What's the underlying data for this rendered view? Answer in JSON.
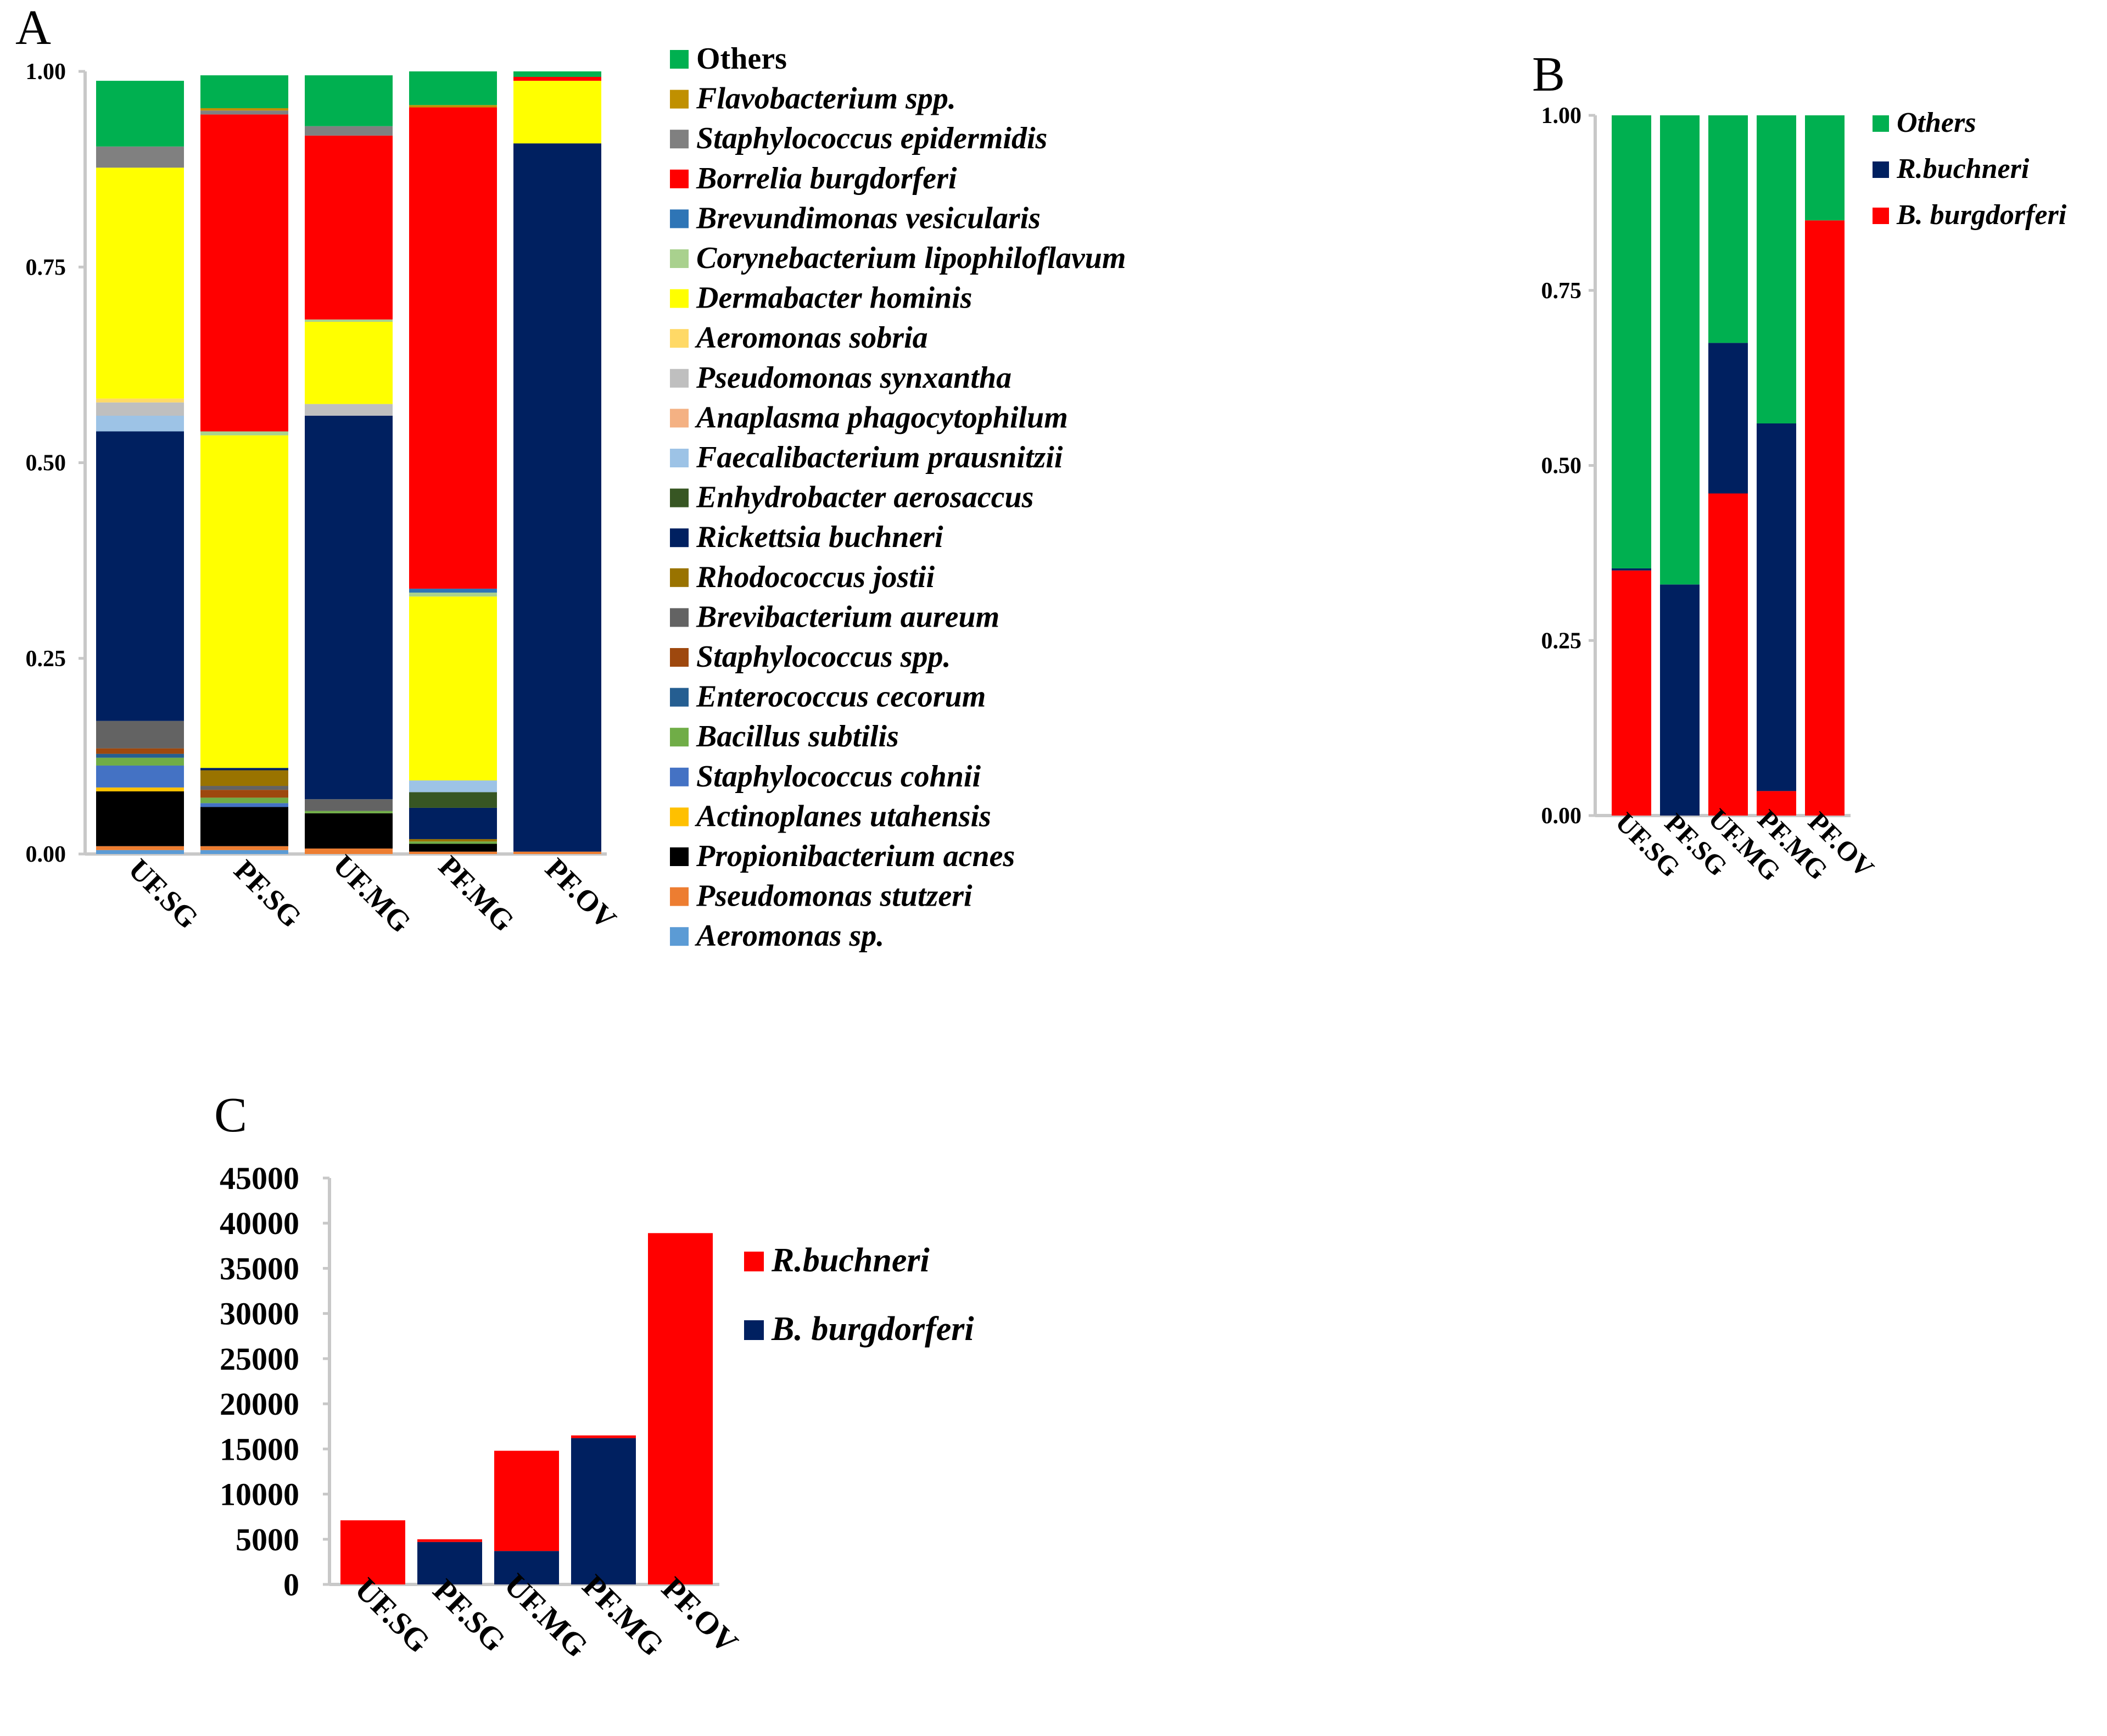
{
  "chart_data": [
    {
      "panel": "A",
      "type": "bar",
      "stacked": true,
      "categories": [
        "UF.SG",
        "PF.SG",
        "UF.MG",
        "PF.MG",
        "PF.OV"
      ],
      "ylim": [
        0,
        1
      ],
      "yticks": [
        "0.00",
        "0.25",
        "0.50",
        "0.75",
        "1.00"
      ],
      "series": [
        {
          "name": "Aeromonas sp.",
          "color": "#5b9bd5",
          "values": [
            0.005,
            0.005,
            0.0,
            0.0,
            0.0
          ]
        },
        {
          "name": "Pseudomonas stutzeri",
          "color": "#ed7d31",
          "values": [
            0.005,
            0.005,
            0.007,
            0.003,
            0.003
          ]
        },
        {
          "name": "Propionibacterium acnes",
          "color": "#000000",
          "values": [
            0.07,
            0.05,
            0.045,
            0.01,
            0.0
          ]
        },
        {
          "name": "Actinoplanes utahensis",
          "color": "#ffc000",
          "values": [
            0.005,
            0.0,
            0.0,
            0.0,
            0.0
          ]
        },
        {
          "name": "Staphylococcus cohnii",
          "color": "#4472c4",
          "values": [
            0.028,
            0.005,
            0.0,
            0.0,
            0.0
          ]
        },
        {
          "name": "Bacillus subtilis",
          "color": "#70ad47",
          "values": [
            0.01,
            0.007,
            0.003,
            0.003,
            0.0
          ]
        },
        {
          "name": "Enterococcus cecorum",
          "color": "#255e91",
          "values": [
            0.005,
            0.0,
            0.0,
            0.0,
            0.0
          ]
        },
        {
          "name": "Staphylococcus spp.",
          "color": "#9e480e",
          "values": [
            0.007,
            0.01,
            0.0,
            0.0,
            0.0
          ]
        },
        {
          "name": "Brevibacterium aureum",
          "color": "#636363",
          "values": [
            0.035,
            0.005,
            0.015,
            0.0,
            0.0
          ]
        },
        {
          "name": "Rhodococcus jostii",
          "color": "#997300",
          "values": [
            0.0,
            0.02,
            0.0,
            0.003,
            0.0
          ]
        },
        {
          "name": "Rickettsia buchneri",
          "color": "#002060",
          "values": [
            0.37,
            0.003,
            0.49,
            0.04,
            0.905
          ]
        },
        {
          "name": "Enhydrobacter aerosaccus",
          "color": "#375623",
          "values": [
            0.0,
            0.0,
            0.0,
            0.02,
            0.0
          ]
        },
        {
          "name": "Faecalibacterium prausnitzii",
          "color": "#9dc3e6",
          "values": [
            0.02,
            0.0,
            0.0,
            0.015,
            0.0
          ]
        },
        {
          "name": "Anaplasma phagocytophilum",
          "color": "#f4b183",
          "values": [
            0.0,
            0.0,
            0.0,
            0.0,
            0.0
          ]
        },
        {
          "name": "Pseudomonas synxantha",
          "color": "#bfbfbf",
          "values": [
            0.017,
            0.0,
            0.015,
            0.0,
            0.0
          ]
        },
        {
          "name": "Aeromonas sobria",
          "color": "#ffd966",
          "values": [
            0.005,
            0.0,
            0.0,
            0.0,
            0.0
          ]
        },
        {
          "name": "Dermabacter hominis",
          "color": "#ffff00",
          "values": [
            0.295,
            0.425,
            0.105,
            0.235,
            0.08
          ]
        },
        {
          "name": "Corynebacterium lipophiloflavum",
          "color": "#a9d18e",
          "values": [
            0.0,
            0.005,
            0.003,
            0.005,
            0.0
          ]
        },
        {
          "name": "Brevundimonas vesicularis",
          "color": "#2e75b6",
          "values": [
            0.0,
            0.0,
            0.0,
            0.005,
            0.0
          ]
        },
        {
          "name": "Borrelia burgdorferi",
          "color": "#ff0000",
          "values": [
            0.0,
            0.405,
            0.235,
            0.615,
            0.005
          ]
        },
        {
          "name": "Staphylococcus epidermidis",
          "color": "#808080",
          "values": [
            0.027,
            0.005,
            0.012,
            0.0,
            0.0
          ]
        },
        {
          "name": "Flavobacterium spp.",
          "color": "#c09000",
          "values": [
            0.0,
            0.003,
            0.0,
            0.003,
            0.0
          ]
        },
        {
          "name": "Others",
          "color": "#00b050",
          "values": [
            0.084,
            0.042,
            0.065,
            0.043,
            0.007
          ]
        }
      ],
      "legend_order": [
        "Others",
        "Flavobacterium spp.",
        "Staphylococcus epidermidis",
        "Borrelia burgdorferi",
        "Brevundimonas vesicularis",
        "Corynebacterium lipophiloflavum",
        "Dermabacter hominis",
        "Aeromonas sobria",
        "Pseudomonas synxantha",
        "Anaplasma phagocytophilum",
        "Faecalibacterium prausnitzii",
        "Enhydrobacter aerosaccus",
        "Rickettsia buchneri",
        "Rhodococcus jostii",
        "Brevibacterium aureum",
        "Staphylococcus spp.",
        "Enterococcus cecorum",
        "Bacillus subtilis",
        "Staphylococcus cohnii",
        "Actinoplanes utahensis",
        "Propionibacterium acnes",
        "Pseudomonas stutzeri",
        "Aeromonas sp."
      ],
      "legend_placement": "right"
    },
    {
      "panel": "B",
      "type": "bar",
      "stacked": true,
      "categories": [
        "UF.SG",
        "PF.SG",
        "UF.MG",
        "PF.MG",
        "PF.OV"
      ],
      "ylim": [
        0,
        1
      ],
      "yticks": [
        "0.00",
        "0.25",
        "0.50",
        "0.75",
        "1.00"
      ],
      "series": [
        {
          "name": "B. burgdorferi",
          "color": "#ff0000",
          "values": [
            0.35,
            0.0,
            0.46,
            0.035,
            0.85
          ]
        },
        {
          "name": "R.buchneri",
          "color": "#002060",
          "values": [
            0.003,
            0.33,
            0.215,
            0.525,
            0.0
          ]
        },
        {
          "name": "Others",
          "color": "#00b050",
          "values": [
            0.647,
            0.67,
            0.325,
            0.44,
            0.15
          ]
        }
      ],
      "legend_order": [
        "Others",
        "R.buchneri",
        "B. burgdorferi"
      ],
      "legend_placement": "top-right"
    },
    {
      "panel": "C",
      "type": "bar",
      "stacked": true,
      "categories": [
        "UF.SG",
        "PF.SG",
        "UF.MG",
        "PF.MG",
        "PF.OV"
      ],
      "ylim": [
        0,
        45000
      ],
      "yticks": [
        "0",
        "5000",
        "10000",
        "15000",
        "20000",
        "25000",
        "30000",
        "35000",
        "40000",
        "45000"
      ],
      "series": [
        {
          "name": "B. burgdorferi",
          "color": "#002060",
          "values": [
            0,
            4700,
            3700,
            16200,
            0
          ]
        },
        {
          "name": "R.buchneri",
          "color": "#ff0000",
          "values": [
            7100,
            300,
            11100,
            300,
            38900
          ]
        }
      ],
      "legend_order": [
        "R.buchneri",
        "B. burgdorferi"
      ],
      "legend_placement": "right"
    }
  ],
  "panels": {
    "a": {
      "letter": "A"
    },
    "b": {
      "letter": "B"
    },
    "c": {
      "letter": "C"
    }
  }
}
